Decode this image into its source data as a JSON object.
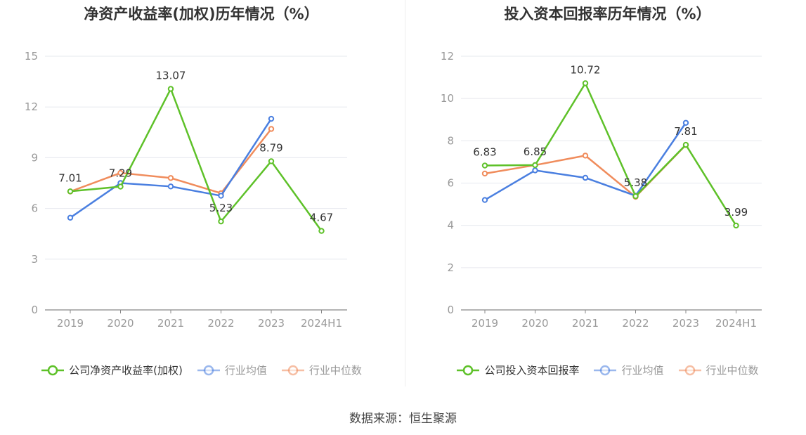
{
  "colors": {
    "company": "#5ec129",
    "avg": "#4a7fe0",
    "median": "#f08c5c",
    "grid": "#e6e8ee",
    "axis": "#888888",
    "text": "#333333",
    "tick": "#999999"
  },
  "chart_data": [
    {
      "type": "line",
      "title": "净资产收益率(加权)历年情况（%）",
      "categories": [
        "2019",
        "2020",
        "2021",
        "2022",
        "2023",
        "2024H1"
      ],
      "ylim": [
        0,
        15
      ],
      "yticks": [
        0,
        3,
        6,
        9,
        12,
        15
      ],
      "grid": true,
      "legend_position": "bottom",
      "series": [
        {
          "name": "公司净资产收益率(加权)",
          "key": "company",
          "values": [
            7.01,
            7.29,
            13.07,
            5.23,
            8.79,
            4.67
          ],
          "labels": [
            "7.01",
            "7.29",
            "13.07",
            "5.23",
            "8.79",
            "4.67"
          ]
        },
        {
          "name": "行业均值",
          "key": "avg",
          "values": [
            5.45,
            7.5,
            7.3,
            6.75,
            11.3,
            null
          ]
        },
        {
          "name": "行业中位数",
          "key": "median",
          "values": [
            7.0,
            8.1,
            7.8,
            6.9,
            10.7,
            null
          ]
        }
      ]
    },
    {
      "type": "line",
      "title": "投入资本回报率历年情况（%）",
      "categories": [
        "2019",
        "2020",
        "2021",
        "2022",
        "2023",
        "2024H1"
      ],
      "ylim": [
        0,
        12
      ],
      "yticks": [
        0,
        2,
        4,
        6,
        8,
        10,
        12
      ],
      "grid": true,
      "legend_position": "bottom",
      "series": [
        {
          "name": "公司投入资本回报率",
          "key": "company",
          "values": [
            6.83,
            6.85,
            10.72,
            5.38,
            7.81,
            3.99
          ],
          "labels": [
            "6.83",
            "6.85",
            "10.72",
            "5.38",
            "7.81",
            "3.99"
          ]
        },
        {
          "name": "行业均值",
          "key": "avg",
          "values": [
            5.2,
            6.6,
            6.25,
            5.4,
            8.85,
            null
          ]
        },
        {
          "name": "行业中位数",
          "key": "median",
          "values": [
            6.45,
            6.85,
            7.3,
            5.35,
            7.8,
            null
          ]
        }
      ]
    }
  ],
  "source": "数据来源：恒生聚源"
}
